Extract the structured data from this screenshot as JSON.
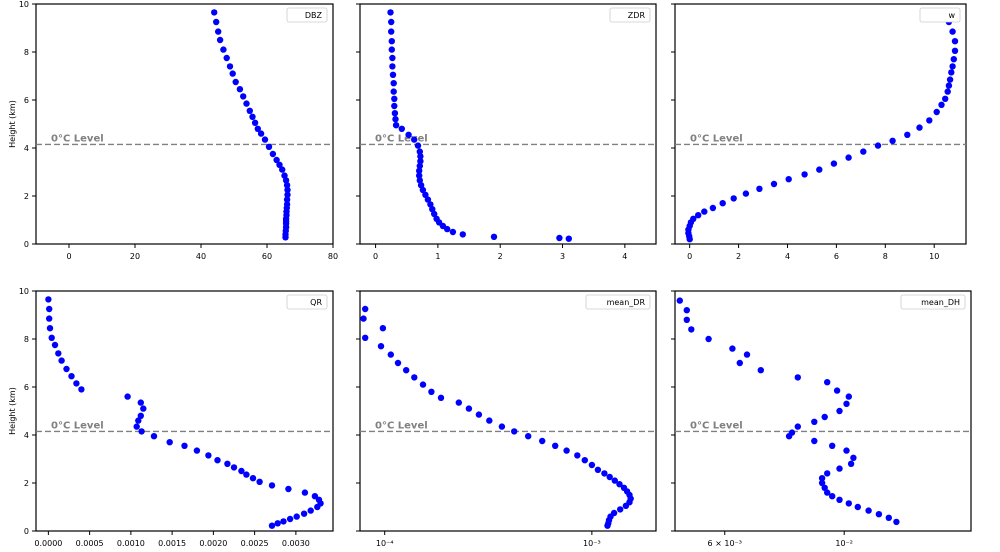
{
  "chart_data": [
    {
      "id": "dbz",
      "type": "scatter",
      "legend": "DBZ",
      "legend_loc": "top-right",
      "ylabel": "Height (km)",
      "xscale": "linear",
      "xlim": [
        -10,
        80
      ],
      "ylim": [
        0,
        10
      ],
      "xticks": [
        0,
        20,
        40,
        60,
        80
      ],
      "xtick_labels": [
        "0",
        "20",
        "40",
        "60",
        "80"
      ],
      "yticks": [
        0,
        2,
        4,
        6,
        8,
        10
      ],
      "ytick_labels": [
        "0",
        "2",
        "4",
        "6",
        "8",
        "10"
      ],
      "show_ytick_labels": true,
      "level_label": "0°C Level",
      "level_y": 4.15,
      "marker_color": "#0000ff",
      "x": [
        44.0,
        44.6,
        45.2,
        45.8,
        46.8,
        47.8,
        48.8,
        49.6,
        50.5,
        51.8,
        52.8,
        53.8,
        54.8,
        55.6,
        56.4,
        57.2,
        58.2,
        59.4,
        60.6,
        61.8,
        62.9,
        63.8,
        64.6,
        65.3,
        65.8,
        66.1,
        66.2,
        66.2,
        66.1,
        66.1,
        66.0,
        65.9,
        65.9,
        65.8,
        65.8,
        65.8,
        65.8,
        65.7,
        65.6,
        65.6
      ],
      "y": [
        9.65,
        9.25,
        8.85,
        8.5,
        8.1,
        7.75,
        7.4,
        7.1,
        6.75,
        6.45,
        6.15,
        5.85,
        5.55,
        5.3,
        5.05,
        4.8,
        4.6,
        4.35,
        4.05,
        3.75,
        3.5,
        3.3,
        3.1,
        2.85,
        2.65,
        2.45,
        2.25,
        2.05,
        1.85,
        1.65,
        1.5,
        1.35,
        1.2,
        1.05,
        0.95,
        0.85,
        0.7,
        0.55,
        0.4,
        0.28
      ]
    },
    {
      "id": "zdr",
      "type": "scatter",
      "legend": "ZDR",
      "legend_loc": "top-right",
      "ylabel": "",
      "xscale": "linear",
      "xlim": [
        -0.25,
        4.5
      ],
      "ylim": [
        0,
        10
      ],
      "xticks": [
        0,
        1,
        2,
        3,
        4
      ],
      "xtick_labels": [
        "0",
        "1",
        "2",
        "3",
        "4"
      ],
      "yticks": [
        0,
        2,
        4,
        6,
        8,
        10
      ],
      "ytick_labels": [
        "0",
        "2",
        "4",
        "6",
        "8",
        "10"
      ],
      "show_ytick_labels": false,
      "level_label": "0°C Level",
      "level_y": 4.15,
      "marker_color": "#0000ff",
      "x": [
        0.24,
        0.25,
        0.25,
        0.26,
        0.26,
        0.27,
        0.27,
        0.28,
        0.29,
        0.29,
        0.3,
        0.3,
        0.31,
        0.32,
        0.33,
        0.42,
        0.53,
        0.62,
        0.68,
        0.71,
        0.72,
        0.72,
        0.71,
        0.7,
        0.7,
        0.71,
        0.73,
        0.76,
        0.8,
        0.84,
        0.88,
        0.91,
        0.94,
        0.98,
        1.02,
        1.08,
        1.15,
        1.24,
        1.4,
        1.9,
        2.95,
        3.1
      ],
      "y": [
        9.65,
        9.25,
        8.85,
        8.45,
        8.1,
        7.75,
        7.4,
        7.05,
        6.7,
        6.35,
        6.05,
        5.75,
        5.45,
        5.2,
        4.95,
        4.8,
        4.55,
        4.35,
        4.1,
        3.85,
        3.65,
        3.45,
        3.25,
        3.05,
        2.85,
        2.65,
        2.45,
        2.25,
        2.05,
        1.85,
        1.65,
        1.45,
        1.25,
        1.05,
        0.9,
        0.75,
        0.62,
        0.5,
        0.4,
        0.3,
        0.25,
        0.22
      ]
    },
    {
      "id": "w",
      "type": "scatter",
      "legend": "w",
      "legend_loc": "top-right",
      "ylabel": "",
      "xscale": "linear",
      "xlim": [
        -0.6,
        11.3
      ],
      "ylim": [
        0,
        10
      ],
      "xticks": [
        0,
        2,
        4,
        6,
        8,
        10
      ],
      "xtick_labels": [
        "0",
        "2",
        "4",
        "6",
        "8",
        "10"
      ],
      "yticks": [
        0,
        2,
        4,
        6,
        8,
        10
      ],
      "ytick_labels": [
        "0",
        "2",
        "4",
        "6",
        "8",
        "10"
      ],
      "show_ytick_labels": false,
      "level_label": "0°C Level",
      "level_y": 4.15,
      "marker_color": "#0000ff",
      "x": [
        10.4,
        10.6,
        10.75,
        10.85,
        10.85,
        10.8,
        10.75,
        10.7,
        10.65,
        10.6,
        10.55,
        10.45,
        10.3,
        10.1,
        9.8,
        9.4,
        8.9,
        8.3,
        7.7,
        7.1,
        6.5,
        5.9,
        5.3,
        4.7,
        4.05,
        3.45,
        2.85,
        2.3,
        1.8,
        1.35,
        0.95,
        0.6,
        0.35,
        0.15,
        0.05,
        0.0,
        -0.05,
        -0.05,
        -0.02,
        0.0
      ],
      "y": [
        9.65,
        9.25,
        8.85,
        8.45,
        8.05,
        7.7,
        7.4,
        7.15,
        6.85,
        6.6,
        6.35,
        6.05,
        5.8,
        5.5,
        5.15,
        4.85,
        4.55,
        4.3,
        4.1,
        3.85,
        3.6,
        3.35,
        3.1,
        2.9,
        2.7,
        2.5,
        2.3,
        2.1,
        1.9,
        1.7,
        1.5,
        1.35,
        1.2,
        1.05,
        0.9,
        0.75,
        0.6,
        0.45,
        0.32,
        0.2
      ]
    },
    {
      "id": "qr",
      "type": "scatter",
      "legend": "QR",
      "legend_loc": "top-right",
      "ylabel": "Height (km)",
      "xscale": "linear",
      "xlim": [
        -0.00015,
        0.00345
      ],
      "ylim": [
        0,
        10
      ],
      "xticks": [
        0.0,
        0.0005,
        0.001,
        0.0015,
        0.002,
        0.0025,
        0.003
      ],
      "xtick_labels": [
        "0.0000",
        "0.0005",
        "0.0010",
        "0.0015",
        "0.0020",
        "0.0025",
        "0.0030"
      ],
      "yticks": [
        0,
        2,
        4,
        6,
        8,
        10
      ],
      "ytick_labels": [
        "0",
        "2",
        "4",
        "6",
        "8",
        "10"
      ],
      "show_ytick_labels": true,
      "level_label": "0°C Level",
      "level_y": 4.15,
      "marker_color": "#0000ff",
      "x": [
        0.0,
        1e-05,
        1e-05,
        2e-05,
        4e-05,
        8e-05,
        0.00012,
        0.00016,
        0.00022,
        0.00028,
        0.00034,
        0.0004,
        0.00096,
        0.00112,
        0.00115,
        0.00112,
        0.00109,
        0.00107,
        0.00113,
        0.00128,
        0.00147,
        0.00165,
        0.0018,
        0.00194,
        0.00205,
        0.00217,
        0.00225,
        0.00234,
        0.0024,
        0.00248,
        0.00256,
        0.00271,
        0.00291,
        0.00311,
        0.00323,
        0.00328,
        0.0033,
        0.00326,
        0.00318,
        0.0031,
        0.00301,
        0.00293,
        0.00285,
        0.00278,
        0.00271
      ],
      "y": [
        9.65,
        9.25,
        8.85,
        8.45,
        8.05,
        7.75,
        7.4,
        7.1,
        6.75,
        6.45,
        6.15,
        5.9,
        5.6,
        5.35,
        5.1,
        4.8,
        4.6,
        4.35,
        4.15,
        3.95,
        3.7,
        3.55,
        3.35,
        3.15,
        2.95,
        2.8,
        2.65,
        2.5,
        2.35,
        2.2,
        2.05,
        1.9,
        1.75,
        1.6,
        1.45,
        1.3,
        1.15,
        1.0,
        0.85,
        0.72,
        0.6,
        0.5,
        0.4,
        0.32,
        0.22
      ]
    },
    {
      "id": "mean_dr",
      "type": "scatter",
      "legend": "mean_DR",
      "legend_loc": "top-right",
      "ylabel": "",
      "xscale": "log",
      "xlim": [
        7.6e-05,
        0.00204
      ],
      "ylim": [
        0,
        10
      ],
      "xticks": [
        0.0001,
        0.001
      ],
      "xtick_labels": [
        "10⁻⁴",
        "10⁻³"
      ],
      "yticks": [
        0,
        2,
        4,
        6,
        8,
        10
      ],
      "ytick_labels": [
        "0",
        "2",
        "4",
        "6",
        "8",
        "10"
      ],
      "show_ytick_labels": false,
      "level_label": "0°C Level",
      "level_y": 4.15,
      "marker_color": "#0000ff",
      "x": [
        8.05e-05,
        7.9e-05,
        8.05e-05,
        9.8e-05,
        9.6e-05,
        0.000107,
        0.000116,
        0.000127,
        0.000139,
        0.000153,
        0.000168,
        0.000187,
        0.000228,
        0.000255,
        0.000285,
        0.00032,
        0.000368,
        0.000422,
        0.000493,
        0.000576,
        0.000665,
        0.000755,
        0.000851,
        0.000925,
        0.001,
        0.00107,
        0.00115,
        0.00122,
        0.00129,
        0.00136,
        0.00143,
        0.00148,
        0.00152,
        0.00154,
        0.00152,
        0.00146,
        0.00137,
        0.00128,
        0.00123,
        0.00121,
        0.0012,
        0.00119
      ],
      "y": [
        9.25,
        8.85,
        8.05,
        8.45,
        7.7,
        7.35,
        7.0,
        6.7,
        6.4,
        6.1,
        5.8,
        5.55,
        5.35,
        5.1,
        4.85,
        4.6,
        4.35,
        4.15,
        3.95,
        3.75,
        3.55,
        3.35,
        3.15,
        2.95,
        2.75,
        2.55,
        2.4,
        2.25,
        2.1,
        1.95,
        1.8,
        1.65,
        1.5,
        1.35,
        1.2,
        1.05,
        0.9,
        0.75,
        0.6,
        0.45,
        0.32,
        0.22
      ]
    },
    {
      "id": "mean_dh",
      "type": "scatter",
      "legend": "mean_DH",
      "legend_loc": "top-right",
      "ylabel": "",
      "xscale": "log",
      "xlim": [
        0.00485,
        0.0172
      ],
      "ylim": [
        0,
        10
      ],
      "xticks": [
        0.006,
        0.01
      ],
      "xtick_labels": [
        "6 × 10⁻³",
        "10⁻²"
      ],
      "yticks": [
        0,
        2,
        4,
        6,
        8,
        10
      ],
      "ytick_labels": [
        "0",
        "2",
        "4",
        "6",
        "8",
        "10"
      ],
      "show_ytick_labels": false,
      "level_label": "0°C Level",
      "level_y": 4.15,
      "marker_color": "#0000ff",
      "x": [
        0.00495,
        0.0051,
        0.0051,
        0.0052,
        0.0056,
        0.0062,
        0.0066,
        0.0064,
        0.007,
        0.0082,
        0.0093,
        0.0097,
        0.0102,
        0.0101,
        0.0098,
        0.0092,
        0.0088,
        0.0082,
        0.0079,
        0.008,
        0.0088,
        0.0095,
        0.0101,
        0.0104,
        0.0103,
        0.0098,
        0.0093,
        0.0091,
        0.0091,
        0.0092,
        0.0093,
        0.0095,
        0.0098,
        0.0102,
        0.0106,
        0.0111,
        0.0116,
        0.0121,
        0.0125
      ],
      "y": [
        9.6,
        9.2,
        8.8,
        8.4,
        8.0,
        7.6,
        7.35,
        7.0,
        6.7,
        6.4,
        6.2,
        5.85,
        5.6,
        5.3,
        5.0,
        4.75,
        4.55,
        4.35,
        3.95,
        4.1,
        3.75,
        3.55,
        3.35,
        3.05,
        2.8,
        2.6,
        2.4,
        2.2,
        2.0,
        1.8,
        1.6,
        1.45,
        1.3,
        1.15,
        1.0,
        0.85,
        0.7,
        0.55,
        0.38
      ]
    }
  ]
}
